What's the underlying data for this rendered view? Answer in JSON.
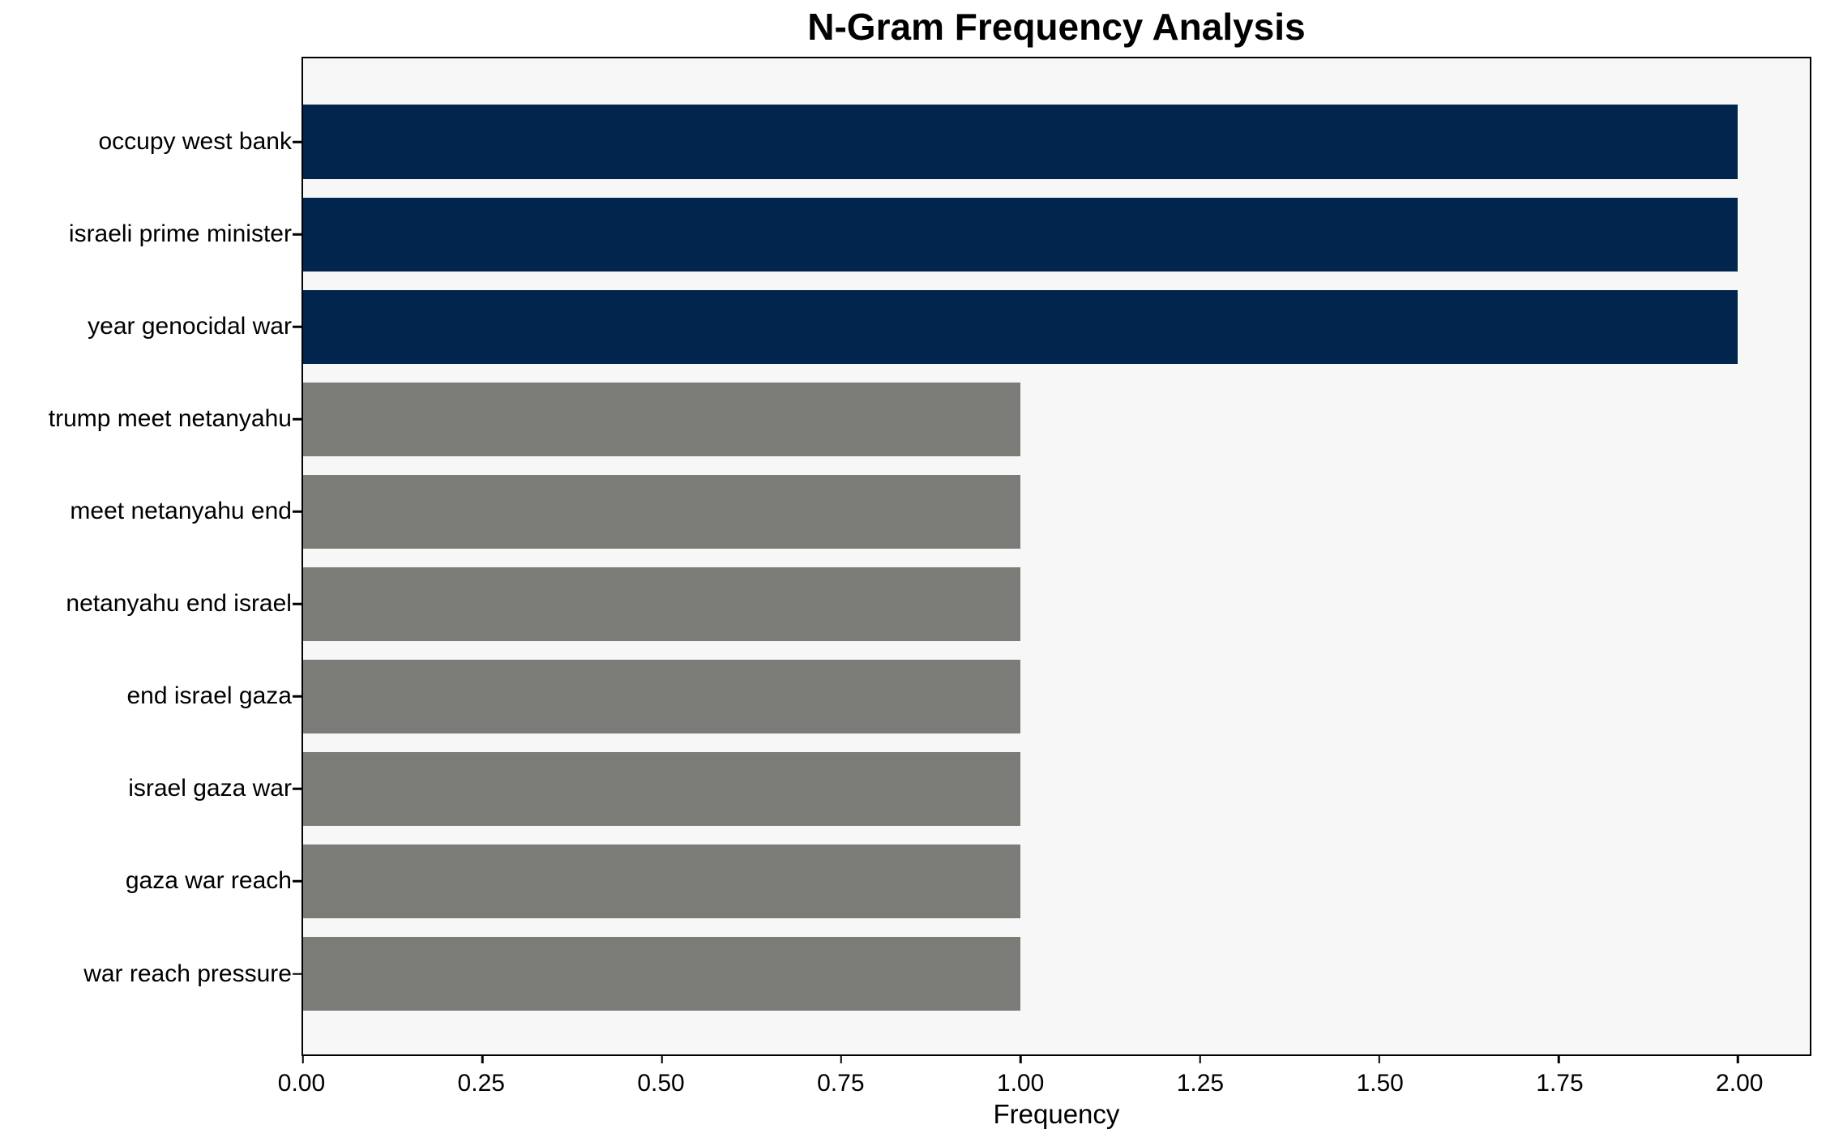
{
  "chart_data": {
    "type": "bar",
    "orientation": "horizontal",
    "title": "N-Gram Frequency Analysis",
    "xlabel": "Frequency",
    "ylabel": "",
    "categories": [
      "occupy west bank",
      "israeli prime minister",
      "year genocidal war",
      "trump meet netanyahu",
      "meet netanyahu end",
      "netanyahu end israel",
      "end israel gaza",
      "israel gaza war",
      "gaza war reach",
      "war reach pressure"
    ],
    "values": [
      2,
      2,
      2,
      1,
      1,
      1,
      1,
      1,
      1,
      1
    ],
    "bar_colors": [
      "#02254d",
      "#02254d",
      "#02254d",
      "#7b7b77",
      "#7b7b77",
      "#7b7b77",
      "#7b7b77",
      "#7b7b77",
      "#7b7b77",
      "#7b7b77"
    ],
    "xlim": [
      0,
      2.1
    ],
    "x_ticks": [
      0.0,
      0.25,
      0.5,
      0.75,
      1.0,
      1.25,
      1.5,
      1.75,
      2.0
    ],
    "x_tick_labels": [
      "0.00",
      "0.25",
      "0.50",
      "0.75",
      "1.00",
      "1.25",
      "1.50",
      "1.75",
      "2.00"
    ],
    "grid": "off",
    "legend": "none",
    "plot_background": "#f7f7f8",
    "figure_background": "#ffffff",
    "spine_color": "#000000"
  }
}
